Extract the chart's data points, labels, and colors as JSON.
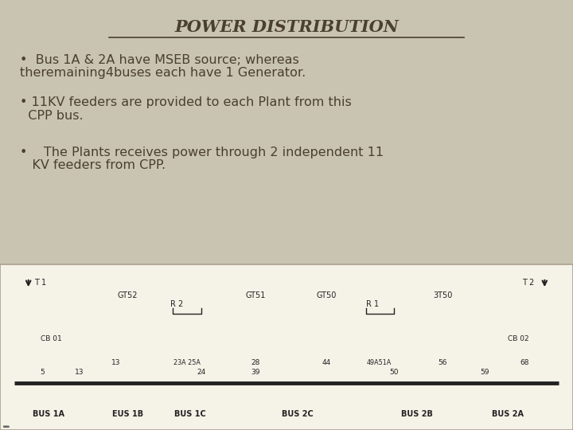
{
  "title": "POWER DISTRIBUTION",
  "slide_bg": "#c9c4b2",
  "text_color": "#4a3f30",
  "bullet1_line1": "•  Bus 1A & 2A have MSEB source; whereas",
  "bullet1_line2": "theremaining4buses each have 1 Generator.",
  "bullet2_line1": "• 11KV feeders are provided to each Plant from this",
  "bullet2_line2": "  CPP bus.",
  "bullet3_line1": "•    The Plants receives power through 2 independent 11",
  "bullet3_line2": "   KV feeders from CPP.",
  "diagram_bg": "#f5f2e8",
  "gray_box_color": "#888880",
  "line_color": "#222222",
  "circle_bg": "#e8e5d5",
  "t_left": "T 1",
  "t_right": "T 2",
  "cb_left": "CB 01",
  "cb_right": "CB 02",
  "gen_labels": [
    "GT52",
    "GT51",
    "GT50",
    "3T50"
  ],
  "bus_labels": [
    "BUS 1A",
    "EUS 1B",
    "BUS 1C",
    "BUS 2C",
    "BUS 2B",
    "BUS 2A"
  ]
}
